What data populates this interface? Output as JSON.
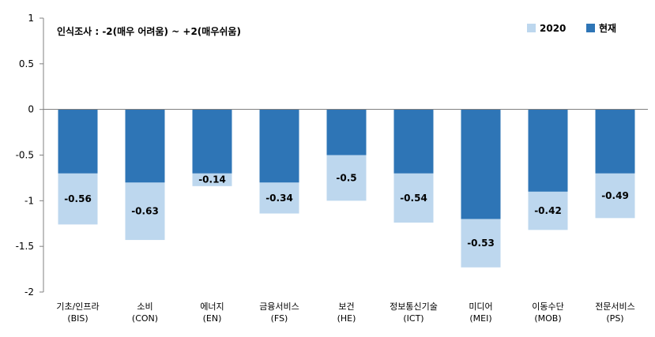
{
  "chart_data": {
    "type": "bar",
    "annotation": "인식조사 : -2(매우 어려움) ~ +2(매우쉬움)",
    "categories": [
      {
        "name": "기초/인프라",
        "code": "(BIS)"
      },
      {
        "name": "소비",
        "code": "(CON)"
      },
      {
        "name": "에너지",
        "code": "(EN)"
      },
      {
        "name": "금융서비스",
        "code": "(FS)"
      },
      {
        "name": "보건",
        "code": "(HE)"
      },
      {
        "name": "정보통신기술",
        "code": "(ICT)"
      },
      {
        "name": "미디어",
        "code": "(MEI)"
      },
      {
        "name": "이동수단",
        "code": "(MOB)"
      },
      {
        "name": "전문서비스",
        "code": "(PS)"
      }
    ],
    "series": [
      {
        "name": "2020",
        "color": "#bdd7ee",
        "values": [
          -1.26,
          -1.43,
          -0.84,
          -1.14,
          -1.0,
          -1.24,
          -1.73,
          -1.32,
          -1.19
        ]
      },
      {
        "name": "현재",
        "color": "#2e75b6",
        "values": [
          -0.7,
          -0.8,
          -0.7,
          -0.8,
          -0.5,
          -0.7,
          -1.2,
          -0.9,
          -0.7
        ]
      }
    ],
    "data_labels": [
      "-0.56",
      "-0.63",
      "-0.14",
      "-0.34",
      "-0.5",
      "-0.54",
      "-0.53",
      "-0.42",
      "-0.49"
    ],
    "yticks": [
      "1",
      "0.5",
      "0",
      "-0.5",
      "-1",
      "-1.5",
      "-2"
    ],
    "ylim": [
      -2,
      1
    ],
    "grid": false,
    "legend_position": "top-right"
  }
}
